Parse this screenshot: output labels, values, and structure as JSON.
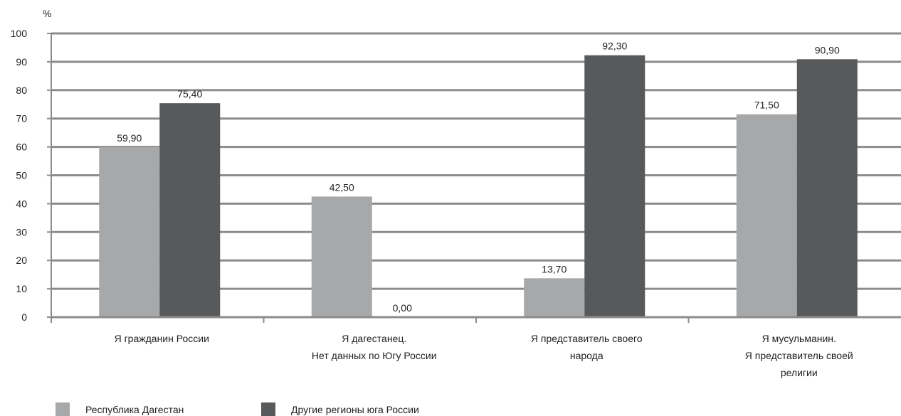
{
  "chart_data": {
    "type": "bar",
    "ylabel": "%",
    "ylim": [
      0,
      100
    ],
    "yticks": [
      "0",
      "10",
      "20",
      "30",
      "40",
      "50",
      "60",
      "70",
      "80",
      "90",
      "100"
    ],
    "grid": true,
    "legend_position": "bottom-left",
    "categories": [
      [
        "Я гражданин России"
      ],
      [
        "Я дагестанец.",
        "Нет данных по Югу России"
      ],
      [
        "Я представитель своего",
        "народа"
      ],
      [
        "Я мусульманин.",
        "Я представитель своей",
        "религии"
      ]
    ],
    "series": [
      {
        "name": "Республика Дагестан",
        "color": "#a7a8aa",
        "values": [
          59.9,
          42.5,
          13.7,
          71.5
        ],
        "labels": [
          "59,90",
          "42,50",
          "13,70",
          "71,50"
        ]
      },
      {
        "name": "Другие регионы юга России",
        "color": "#58595b",
        "values": [
          75.4,
          0,
          92.3,
          90.9
        ],
        "labels": [
          "75,40",
          "0,00",
          "92,30",
          "90,90"
        ]
      }
    ]
  }
}
